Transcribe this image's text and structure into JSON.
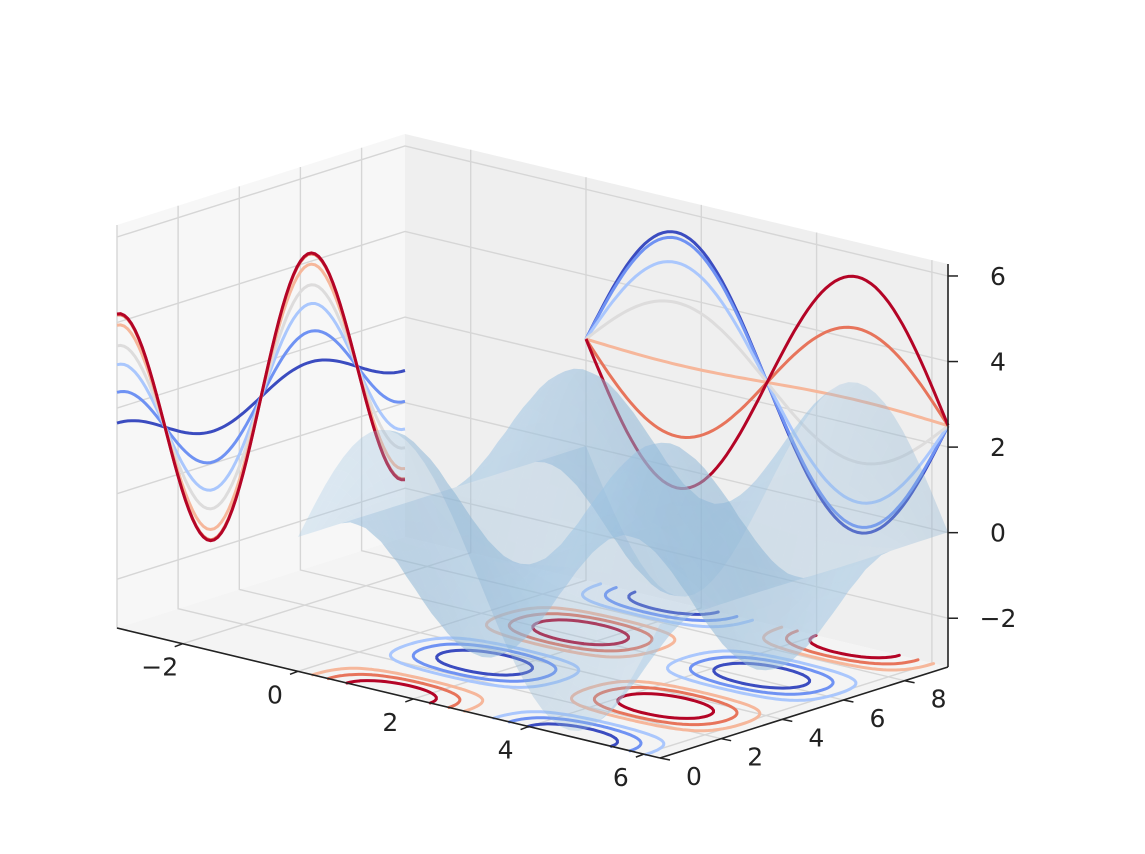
{
  "chart_data": {
    "type": "surface",
    "title": "",
    "xlabel": "",
    "ylabel": "",
    "zlabel": "",
    "xlim": [
      -3.14,
      6.28
    ],
    "ylim": [
      0,
      9.42
    ],
    "zlim": [
      -3.14,
      6.28
    ],
    "grid": true,
    "x_ticks": [
      "−2",
      "0",
      "2",
      "4",
      "6"
    ],
    "x_tick_values": [
      -2,
      0,
      2,
      4,
      6
    ],
    "y_ticks": [
      "0",
      "2",
      "4",
      "6",
      "8"
    ],
    "y_tick_values": [
      0,
      2,
      4,
      6,
      8
    ],
    "z_ticks": [
      "−2",
      "0",
      "2",
      "4",
      "6"
    ],
    "z_tick_values": [
      -2,
      0,
      2,
      4,
      6
    ],
    "surface": {
      "function": "sin(x) * cos(y)",
      "x_range": [
        0,
        6.28
      ],
      "y_range": [
        0,
        9.42
      ],
      "color": "#1f77b4",
      "opacity": 0.3
    },
    "contour_projections": [
      {
        "plane": "z",
        "offset": -3.14,
        "cmap": "coolwarm",
        "levels": [
          -0.75,
          -0.5,
          -0.25,
          0.25,
          0.5,
          0.75
        ]
      },
      {
        "plane": "x",
        "offset": -3.14,
        "cmap": "coolwarm"
      },
      {
        "plane": "y",
        "offset": 9.42,
        "cmap": "coolwarm"
      }
    ],
    "colors": {
      "coolwarm": [
        "#3b4cc0",
        "#6f92f3",
        "#aac7fd",
        "#dddcdc",
        "#f6b79b",
        "#e7745b",
        "#b40426"
      ],
      "pane": "#f2f2f2",
      "grid": "#d6d6d6"
    }
  }
}
